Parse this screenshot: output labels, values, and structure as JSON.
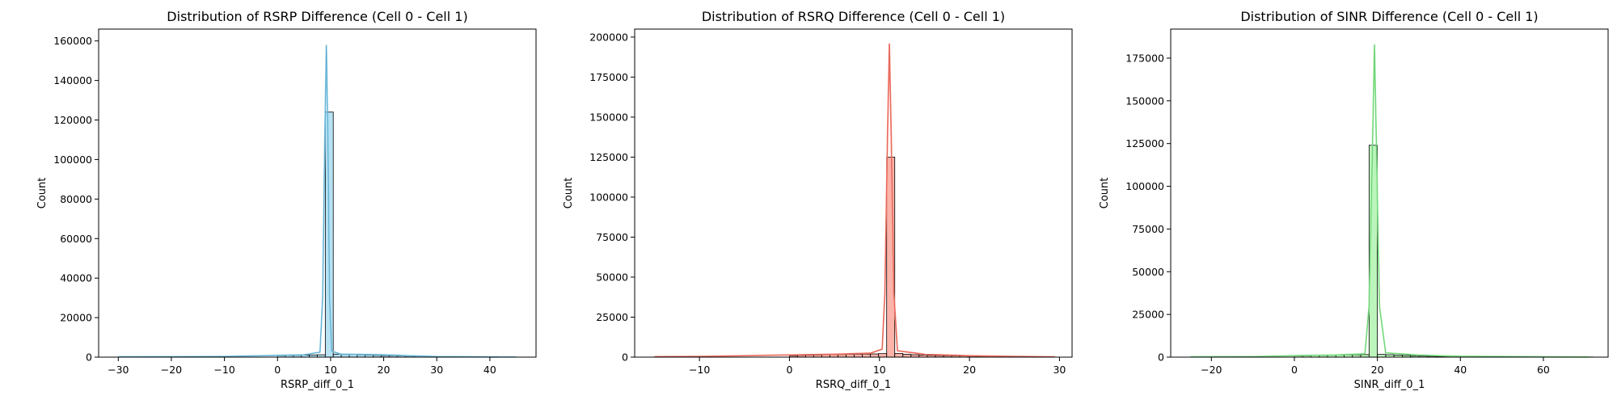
{
  "chart_data": [
    {
      "type": "histogram",
      "title": "Distribution of RSRP Difference (Cell 0 - Cell 1)",
      "xlabel": "RSRP_diff_0_1",
      "ylabel": "Count",
      "color": "#87CEEB",
      "xlim": [
        -33.7,
        48.7
      ],
      "ylim": [
        0,
        166000
      ],
      "xticks": [
        -30,
        -20,
        -10,
        0,
        10,
        20,
        30,
        40
      ],
      "yticks": [
        0,
        20000,
        40000,
        60000,
        80000,
        100000,
        120000,
        140000,
        160000
      ],
      "grid": false,
      "bins": [
        {
          "x0": -29.9,
          "x1": -28.4,
          "count": 100
        },
        {
          "x0": -20,
          "x1": -18.5,
          "count": 150
        },
        {
          "x0": -10,
          "x1": -8.5,
          "count": 250
        },
        {
          "x0": 0,
          "x1": 1.5,
          "count": 700
        },
        {
          "x0": 1.5,
          "x1": 3,
          "count": 800
        },
        {
          "x0": 3,
          "x1": 4.5,
          "count": 900
        },
        {
          "x0": 4.5,
          "x1": 6,
          "count": 1000
        },
        {
          "x0": 6,
          "x1": 7.5,
          "count": 1100
        },
        {
          "x0": 7.5,
          "x1": 9,
          "count": 1200
        },
        {
          "x0": 9,
          "x1": 10.5,
          "count": 124000
        },
        {
          "x0": 10.5,
          "x1": 12,
          "count": 1500
        },
        {
          "x0": 12,
          "x1": 13.5,
          "count": 1300
        },
        {
          "x0": 13.5,
          "x1": 15,
          "count": 1200
        },
        {
          "x0": 15,
          "x1": 16.5,
          "count": 1100
        },
        {
          "x0": 16.5,
          "x1": 18,
          "count": 1000
        },
        {
          "x0": 18,
          "x1": 19.5,
          "count": 900
        },
        {
          "x0": 19.5,
          "x1": 21,
          "count": 800
        },
        {
          "x0": 21,
          "x1": 22.5,
          "count": 700
        },
        {
          "x0": 22.5,
          "x1": 24,
          "count": 600
        },
        {
          "x0": 24,
          "x1": 25.5,
          "count": 500
        },
        {
          "x0": 25.5,
          "x1": 27,
          "count": 300
        },
        {
          "x0": 27,
          "x1": 28.5,
          "count": 150
        },
        {
          "x0": 30,
          "x1": 31.5,
          "count": 100
        },
        {
          "x0": 40,
          "x1": 41.5,
          "count": 50
        }
      ],
      "kde": [
        [
          -30,
          200
        ],
        [
          -20,
          250
        ],
        [
          -10,
          350
        ],
        [
          0,
          900
        ],
        [
          5,
          1200
        ],
        [
          8,
          2500
        ],
        [
          8.5,
          30000
        ],
        [
          8.9,
          110000
        ],
        [
          9.2,
          158000
        ],
        [
          9.5,
          110000
        ],
        [
          9.8,
          30000
        ],
        [
          10.2,
          3000
        ],
        [
          12,
          1500
        ],
        [
          20,
          1200
        ],
        [
          25,
          700
        ],
        [
          30,
          300
        ],
        [
          40,
          150
        ],
        [
          45,
          100
        ]
      ]
    },
    {
      "type": "histogram",
      "title": "Distribution of RSRQ Difference (Cell 0 - Cell 1)",
      "xlabel": "RSRQ_diff_0_1",
      "ylabel": "Count",
      "color": "#FA8072",
      "xlim": [
        -17.2,
        31.4
      ],
      "ylim": [
        0,
        205000
      ],
      "xticks": [
        -10,
        0,
        10,
        20,
        30
      ],
      "yticks": [
        0,
        25000,
        50000,
        75000,
        100000,
        125000,
        150000,
        175000,
        200000
      ],
      "grid": false,
      "bins": [
        {
          "x0": -15,
          "x1": -14.1,
          "count": 100
        },
        {
          "x0": -10,
          "x1": -9.1,
          "count": 150
        },
        {
          "x0": 0,
          "x1": 0.9,
          "count": 900
        },
        {
          "x0": 0.9,
          "x1": 1.8,
          "count": 1100
        },
        {
          "x0": 1.8,
          "x1": 2.7,
          "count": 1200
        },
        {
          "x0": 2.7,
          "x1": 3.6,
          "count": 1300
        },
        {
          "x0": 3.6,
          "x1": 4.5,
          "count": 1400
        },
        {
          "x0": 4.5,
          "x1": 5.4,
          "count": 1500
        },
        {
          "x0": 5.4,
          "x1": 6.3,
          "count": 1600
        },
        {
          "x0": 6.3,
          "x1": 7.2,
          "count": 1700
        },
        {
          "x0": 7.2,
          "x1": 8.1,
          "count": 1800
        },
        {
          "x0": 8.1,
          "x1": 9,
          "count": 1900
        },
        {
          "x0": 9,
          "x1": 9.9,
          "count": 2000
        },
        {
          "x0": 9.9,
          "x1": 10.8,
          "count": 2200
        },
        {
          "x0": 10.8,
          "x1": 11.7,
          "count": 125000
        },
        {
          "x0": 11.7,
          "x1": 12.6,
          "count": 2300
        },
        {
          "x0": 12.6,
          "x1": 13.5,
          "count": 1800
        },
        {
          "x0": 13.5,
          "x1": 14.4,
          "count": 1500
        },
        {
          "x0": 14.4,
          "x1": 15.3,
          "count": 1300
        },
        {
          "x0": 15.3,
          "x1": 16.2,
          "count": 1100
        },
        {
          "x0": 16.2,
          "x1": 17.1,
          "count": 1000
        },
        {
          "x0": 17.1,
          "x1": 18,
          "count": 900
        },
        {
          "x0": 18,
          "x1": 18.9,
          "count": 800
        },
        {
          "x0": 18.9,
          "x1": 19.8,
          "count": 700
        },
        {
          "x0": 19.8,
          "x1": 20.7,
          "count": 600
        },
        {
          "x0": 20.7,
          "x1": 21.6,
          "count": 500
        },
        {
          "x0": 21.6,
          "x1": 22.5,
          "count": 400
        },
        {
          "x0": 22.5,
          "x1": 23.4,
          "count": 300
        },
        {
          "x0": 23.4,
          "x1": 24.3,
          "count": 200
        },
        {
          "x0": 28.5,
          "x1": 29.4,
          "count": 100
        }
      ],
      "kde": [
        [
          -15,
          300
        ],
        [
          -10,
          400
        ],
        [
          0,
          1400
        ],
        [
          5,
          1800
        ],
        [
          9,
          2500
        ],
        [
          10.3,
          5000
        ],
        [
          10.6,
          40000
        ],
        [
          10.9,
          140000
        ],
        [
          11.1,
          196000
        ],
        [
          11.3,
          140000
        ],
        [
          11.6,
          40000
        ],
        [
          12,
          4000
        ],
        [
          15,
          1800
        ],
        [
          20,
          900
        ],
        [
          25,
          400
        ],
        [
          29.5,
          200
        ]
      ]
    },
    {
      "type": "histogram",
      "title": "Distribution of SINR Difference (Cell 0 - Cell 1)",
      "xlabel": "SINR_diff_0_1",
      "ylabel": "Count",
      "color": "#90EE90",
      "xlim": [
        -29.8,
        75.6
      ],
      "ylim": [
        0,
        192000
      ],
      "xticks": [
        -20,
        0,
        20,
        40,
        60
      ],
      "yticks": [
        0,
        25000,
        50000,
        75000,
        100000,
        125000,
        150000,
        175000
      ],
      "grid": false,
      "bins": [
        {
          "x0": -25,
          "x1": -23,
          "count": 100
        },
        {
          "x0": 0,
          "x1": 2,
          "count": 700
        },
        {
          "x0": 2,
          "x1": 4,
          "count": 800
        },
        {
          "x0": 4,
          "x1": 6,
          "count": 900
        },
        {
          "x0": 6,
          "x1": 8,
          "count": 1000
        },
        {
          "x0": 8,
          "x1": 10,
          "count": 1100
        },
        {
          "x0": 10,
          "x1": 12,
          "count": 1200
        },
        {
          "x0": 12,
          "x1": 14,
          "count": 1300
        },
        {
          "x0": 14,
          "x1": 16,
          "count": 1400
        },
        {
          "x0": 16,
          "x1": 18,
          "count": 1500
        },
        {
          "x0": 18,
          "x1": 20,
          "count": 124000
        },
        {
          "x0": 20,
          "x1": 22,
          "count": 1600
        },
        {
          "x0": 22,
          "x1": 24,
          "count": 1400
        },
        {
          "x0": 24,
          "x1": 26,
          "count": 1200
        },
        {
          "x0": 26,
          "x1": 28,
          "count": 1000
        },
        {
          "x0": 28,
          "x1": 30,
          "count": 800
        },
        {
          "x0": 30,
          "x1": 32,
          "count": 600
        },
        {
          "x0": 32,
          "x1": 34,
          "count": 500
        },
        {
          "x0": 34,
          "x1": 36,
          "count": 400
        },
        {
          "x0": 36,
          "x1": 38,
          "count": 300
        },
        {
          "x0": 40,
          "x1": 42,
          "count": 200
        },
        {
          "x0": 70,
          "x1": 72,
          "count": 100
        }
      ],
      "kde": [
        [
          -25,
          200
        ],
        [
          -10,
          300
        ],
        [
          0,
          900
        ],
        [
          10,
          1300
        ],
        [
          17,
          2000
        ],
        [
          18,
          30000
        ],
        [
          18.8,
          120000
        ],
        [
          19.3,
          183000
        ],
        [
          19.8,
          120000
        ],
        [
          20.5,
          30000
        ],
        [
          22,
          2500
        ],
        [
          30,
          1200
        ],
        [
          40,
          500
        ],
        [
          60,
          200
        ],
        [
          71,
          100
        ]
      ]
    }
  ]
}
